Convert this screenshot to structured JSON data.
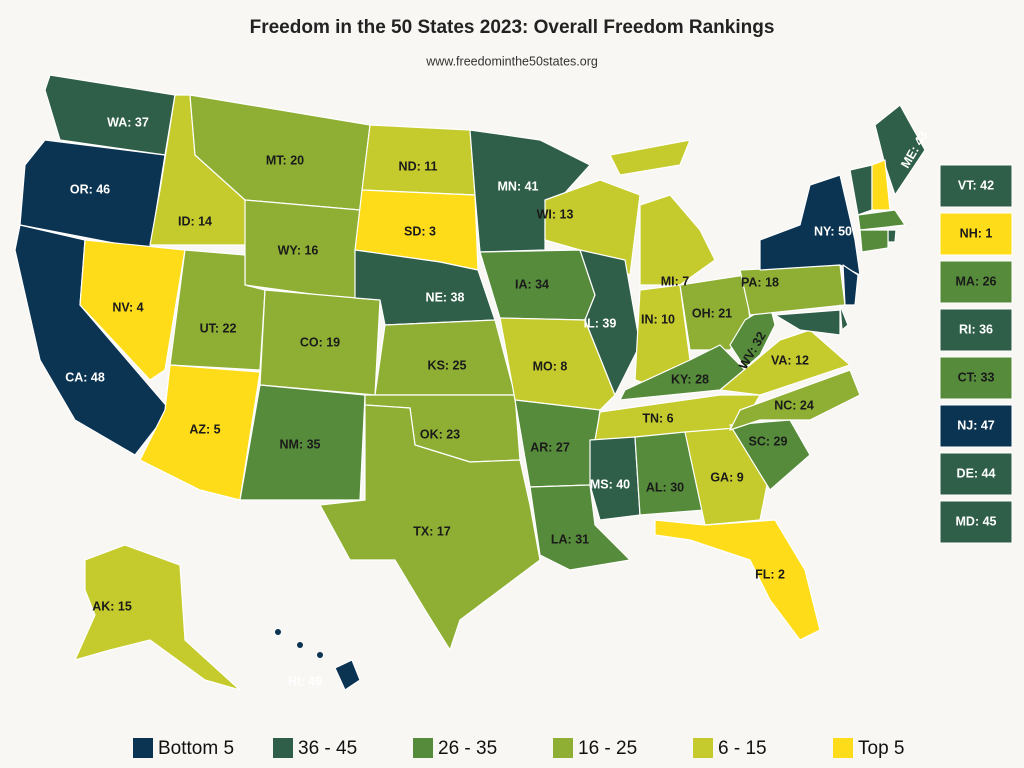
{
  "title": "Freedom in the 50 States 2023: Overall Freedom Rankings",
  "subtitle": "www.freedominthe50states.org",
  "map_labels": [
    {
      "label": "WA: 37",
      "color": "#2f5f48"
    },
    {
      "label": "OR: 46",
      "color": "#0b3352"
    },
    {
      "label": "CA: 48",
      "color": "#0b3352"
    },
    {
      "label": "ID: 14",
      "color": "#c6cb2d"
    },
    {
      "label": "NV: 4",
      "color": "#ffdc1a"
    },
    {
      "label": "MT: 20",
      "color": "#8eaf33"
    },
    {
      "label": "WY: 16",
      "color": "#8eaf33"
    },
    {
      "label": "UT: 22",
      "color": "#8eaf33"
    },
    {
      "label": "AZ: 5",
      "color": "#ffdc1a"
    },
    {
      "label": "CO: 19",
      "color": "#8eaf33"
    },
    {
      "label": "NM: 35",
      "color": "#558b3a"
    },
    {
      "label": "ND: 11",
      "color": "#c6cb2d"
    },
    {
      "label": "SD: 3",
      "color": "#ffdc1a"
    },
    {
      "label": "NE: 38",
      "color": "#2f5f48"
    },
    {
      "label": "KS: 25",
      "color": "#8eaf33"
    },
    {
      "label": "OK: 23",
      "color": "#8eaf33"
    },
    {
      "label": "TX: 17",
      "color": "#8eaf33"
    },
    {
      "label": "MN: 41",
      "color": "#2f5f48"
    },
    {
      "label": "IA: 34",
      "color": "#558b3a"
    },
    {
      "label": "MO: 8",
      "color": "#c6cb2d"
    },
    {
      "label": "AR: 27",
      "color": "#558b3a"
    },
    {
      "label": "LA: 31",
      "color": "#558b3a"
    },
    {
      "label": "WI: 13",
      "color": "#c6cb2d"
    },
    {
      "label": "IL: 39",
      "color": "#2f5f48"
    },
    {
      "label": "MI: 7",
      "color": "#c6cb2d"
    },
    {
      "label": "IN: 10",
      "color": "#c6cb2d"
    },
    {
      "label": "OH: 21",
      "color": "#8eaf33"
    },
    {
      "label": "KY: 28",
      "color": "#558b3a"
    },
    {
      "label": "TN: 6",
      "color": "#c6cb2d"
    },
    {
      "label": "MS: 40",
      "color": "#2f5f48"
    },
    {
      "label": "AL: 30",
      "color": "#558b3a"
    },
    {
      "label": "GA: 9",
      "color": "#c6cb2d"
    },
    {
      "label": "FL: 2",
      "color": "#ffdc1a"
    },
    {
      "label": "SC: 29",
      "color": "#558b3a"
    },
    {
      "label": "NC: 24",
      "color": "#8eaf33"
    },
    {
      "label": "VA: 12",
      "color": "#c6cb2d"
    },
    {
      "label": "WV: 32",
      "color": "#558b3a"
    },
    {
      "label": "PA: 18",
      "color": "#8eaf33"
    },
    {
      "label": "NY: 50",
      "color": "#0b3352"
    },
    {
      "label": "ME: 43",
      "color": "#2f5f48"
    },
    {
      "label": "AK: 15",
      "color": "#c6cb2d"
    },
    {
      "label": "HI: 49",
      "color": "#0b3352"
    }
  ],
  "side_boxes": [
    {
      "label": "VT: 42",
      "color": "#2f5f48"
    },
    {
      "label": "NH: 1",
      "color": "#ffdc1a"
    },
    {
      "label": "MA: 26",
      "color": "#558b3a"
    },
    {
      "label": "RI: 36",
      "color": "#2f5f48"
    },
    {
      "label": "CT: 33",
      "color": "#558b3a"
    },
    {
      "label": "NJ: 47",
      "color": "#0b3352"
    },
    {
      "label": "DE: 44",
      "color": "#2f5f48"
    },
    {
      "label": "MD: 45",
      "color": "#2f5f48"
    }
  ],
  "legend": [
    {
      "name": "Bottom 5",
      "color": "#0b3352"
    },
    {
      "name": "36 - 45",
      "color": "#2f5f48"
    },
    {
      "name": "26 - 35",
      "color": "#558b3a"
    },
    {
      "name": "16 - 25",
      "color": "#8eaf33"
    },
    {
      "name": "6 - 15",
      "color": "#c6cb2d"
    },
    {
      "name": "Top 5",
      "color": "#ffdc1a"
    }
  ]
}
